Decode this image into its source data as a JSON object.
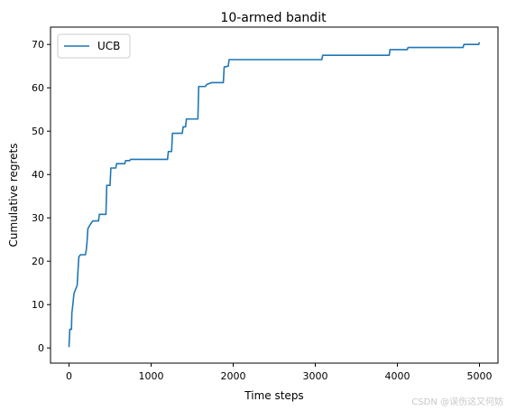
{
  "chart_data": {
    "type": "line",
    "title": "10-armed bandit",
    "xlabel": "Time steps",
    "ylabel": "Cumulative regrets",
    "xlim": [
      -225,
      5225
    ],
    "ylim": [
      -3.5,
      74
    ],
    "xticks": [
      0,
      1000,
      2000,
      3000,
      4000,
      5000
    ],
    "yticks": [
      0,
      10,
      20,
      30,
      40,
      50,
      60,
      70
    ],
    "grid": false,
    "legend": "upper left",
    "series": [
      {
        "name": "UCB",
        "color": "#1f77b4",
        "points": [
          [
            0,
            0.2
          ],
          [
            10,
            4.3
          ],
          [
            30,
            4.3
          ],
          [
            35,
            8
          ],
          [
            50,
            10.5
          ],
          [
            60,
            12.5
          ],
          [
            80,
            13.5
          ],
          [
            100,
            14.5
          ],
          [
            110,
            18
          ],
          [
            120,
            21
          ],
          [
            140,
            21.5
          ],
          [
            200,
            21.5
          ],
          [
            210,
            22.5
          ],
          [
            220,
            24.5
          ],
          [
            230,
            27.5
          ],
          [
            260,
            28.5
          ],
          [
            290,
            29.3
          ],
          [
            360,
            29.3
          ],
          [
            370,
            30.8
          ],
          [
            450,
            30.8
          ],
          [
            460,
            37.5
          ],
          [
            500,
            37.5
          ],
          [
            510,
            41.5
          ],
          [
            570,
            41.5
          ],
          [
            580,
            42.5
          ],
          [
            680,
            42.5
          ],
          [
            690,
            43.2
          ],
          [
            740,
            43.2
          ],
          [
            750,
            43.5
          ],
          [
            1200,
            43.5
          ],
          [
            1210,
            45.3
          ],
          [
            1250,
            45.3
          ],
          [
            1260,
            49.5
          ],
          [
            1380,
            49.5
          ],
          [
            1390,
            51
          ],
          [
            1420,
            51
          ],
          [
            1430,
            52.8
          ],
          [
            1570,
            52.8
          ],
          [
            1580,
            60.3
          ],
          [
            1660,
            60.3
          ],
          [
            1680,
            60.8
          ],
          [
            1710,
            61
          ],
          [
            1740,
            61.2
          ],
          [
            1880,
            61.2
          ],
          [
            1890,
            64.8
          ],
          [
            1940,
            65
          ],
          [
            1950,
            66.5
          ],
          [
            3080,
            66.5
          ],
          [
            3090,
            67.5
          ],
          [
            3900,
            67.5
          ],
          [
            3910,
            68.8
          ],
          [
            4120,
            68.8
          ],
          [
            4130,
            69.3
          ],
          [
            4800,
            69.3
          ],
          [
            4810,
            70
          ],
          [
            4990,
            70
          ],
          [
            5000,
            70.5
          ]
        ]
      }
    ]
  },
  "watermark": "CSDN @误伤这又何妨"
}
